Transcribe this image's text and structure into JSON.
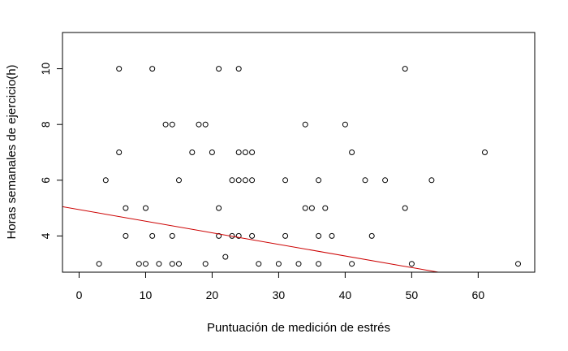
{
  "chart_data": {
    "type": "scatter",
    "xlabel": "Puntuación de medición de estrés",
    "ylabel": "Horas semanales de ejercicio(h)",
    "xlim": [
      -2.5,
      68.5
    ],
    "ylim": [
      2.7,
      11.3
    ],
    "x_ticks": [
      0,
      10,
      20,
      30,
      40,
      50,
      60
    ],
    "y_ticks": [
      4,
      6,
      8,
      10
    ],
    "grid": false,
    "legend": "none",
    "point_color": "#000000",
    "line_color": "#cc0000",
    "points": [
      [
        3,
        3
      ],
      [
        4,
        6
      ],
      [
        6,
        10
      ],
      [
        6,
        7
      ],
      [
        7,
        5
      ],
      [
        7,
        4
      ],
      [
        9,
        3
      ],
      [
        10,
        3
      ],
      [
        10,
        5
      ],
      [
        11,
        10
      ],
      [
        11,
        4
      ],
      [
        12,
        3
      ],
      [
        13,
        8
      ],
      [
        14,
        8
      ],
      [
        14,
        4
      ],
      [
        14,
        3
      ],
      [
        15,
        3
      ],
      [
        15,
        6
      ],
      [
        17,
        7
      ],
      [
        18,
        8
      ],
      [
        19,
        8
      ],
      [
        19,
        3
      ],
      [
        20,
        7
      ],
      [
        21,
        10
      ],
      [
        21,
        5
      ],
      [
        21,
        4
      ],
      [
        22,
        3.25
      ],
      [
        23,
        4
      ],
      [
        23,
        6
      ],
      [
        24,
        10
      ],
      [
        24,
        7
      ],
      [
        24,
        6
      ],
      [
        24,
        4
      ],
      [
        25,
        7
      ],
      [
        25,
        6
      ],
      [
        26,
        7
      ],
      [
        26,
        6
      ],
      [
        26,
        4
      ],
      [
        27,
        3
      ],
      [
        30,
        3
      ],
      [
        31,
        6
      ],
      [
        31,
        4
      ],
      [
        33,
        3
      ],
      [
        34,
        8
      ],
      [
        34,
        5
      ],
      [
        35,
        5
      ],
      [
        36,
        6
      ],
      [
        36,
        4
      ],
      [
        36,
        3
      ],
      [
        37,
        5
      ],
      [
        38,
        4
      ],
      [
        40,
        8
      ],
      [
        41,
        7
      ],
      [
        41,
        3
      ],
      [
        43,
        6
      ],
      [
        44,
        4
      ],
      [
        46,
        6
      ],
      [
        49,
        10
      ],
      [
        49,
        5
      ],
      [
        50,
        3
      ],
      [
        53,
        6
      ],
      [
        61,
        7
      ],
      [
        66,
        3
      ]
    ],
    "regression_line": {
      "x": [
        -2.5,
        54
      ],
      "y": [
        5.05,
        2.7
      ]
    }
  }
}
